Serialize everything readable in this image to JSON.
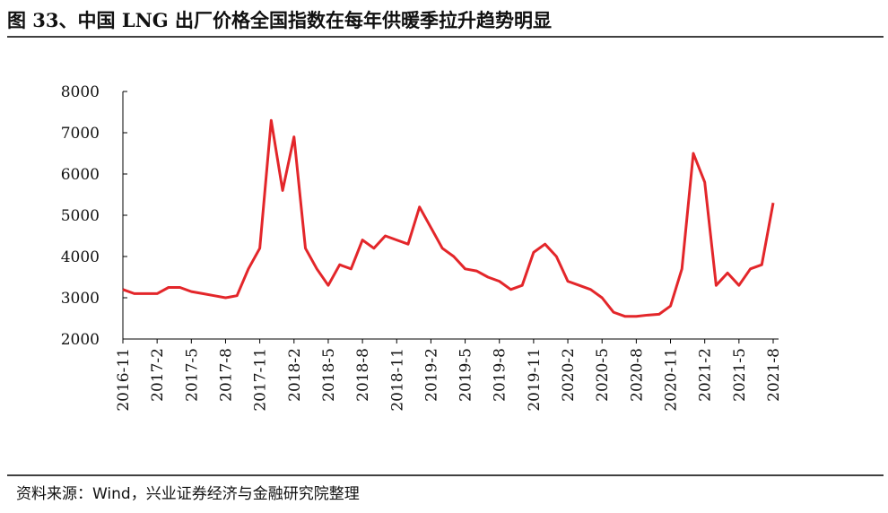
{
  "chart_data": {
    "type": "line",
    "title": "图 33、中国 LNG 出厂价格全国指数在每年供暖季拉升趋势明显",
    "source": "资料来源：Wind，兴业证券经济与金融研究院整理",
    "categories": [
      "2016-11",
      null,
      null,
      "2017-2",
      null,
      null,
      "2017-5",
      null,
      null,
      "2017-8",
      null,
      null,
      "2017-11",
      null,
      null,
      "2018-2",
      null,
      null,
      "2018-5",
      null,
      null,
      "2018-8",
      null,
      null,
      "2018-11",
      null,
      null,
      "2019-2",
      null,
      null,
      "2019-5",
      null,
      null,
      "2019-8",
      null,
      null,
      "2019-11",
      null,
      null,
      "2020-2",
      null,
      null,
      "2020-5",
      null,
      null,
      "2020-8",
      null,
      null,
      "2020-11",
      null,
      null,
      "2021-2",
      null,
      null,
      "2021-5",
      null,
      null,
      "2021-8"
    ],
    "series": [
      {
        "name": "LNG",
        "color": "#e3262a",
        "values": [
          3200,
          3100,
          3100,
          3100,
          3250,
          3250,
          3150,
          3100,
          3050,
          3000,
          3050,
          3700,
          4200,
          7300,
          5600,
          6900,
          4200,
          3700,
          3300,
          3800,
          3700,
          4400,
          4200,
          4500,
          4400,
          4300,
          5200,
          4700,
          4200,
          4000,
          3700,
          3650,
          3500,
          3400,
          3200,
          3300,
          4100,
          4300,
          4000,
          3400,
          3300,
          3200,
          3000,
          2650,
          2550,
          2550,
          2580,
          2600,
          2800,
          3700,
          6500,
          5800,
          3300,
          3600,
          3300,
          3700,
          3800,
          5300
        ]
      }
    ],
    "ylim": [
      2000,
      8000
    ],
    "yticks": [
      2000,
      3000,
      4000,
      5000,
      6000,
      7000,
      8000
    ]
  }
}
